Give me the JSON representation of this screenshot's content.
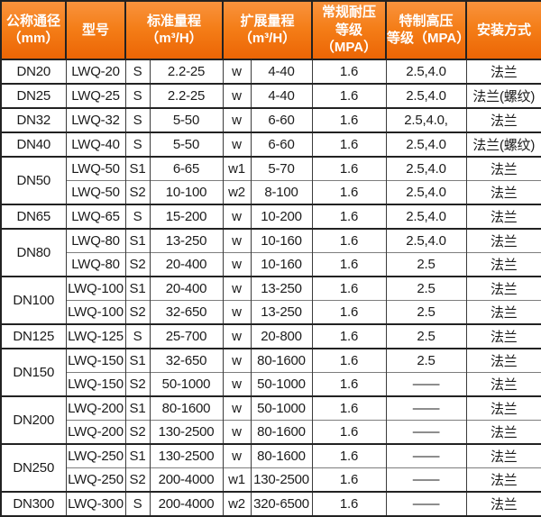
{
  "header": {
    "col_dn": "公称通径\n（mm）",
    "col_model": "型号",
    "col_standard_range": "标准量程\n（m³/H）",
    "col_extended_range": "扩展量程\n（m³/H）",
    "col_pressure_standard": "常规耐压\n等级（MPA）",
    "col_pressure_high": "特制高压\n等级（MPA）",
    "col_install": "安装方式"
  },
  "colors": {
    "header_gradient_top": "#f9933d",
    "header_gradient_bottom": "#ec6505",
    "header_text": "#ffffff",
    "border_dark": "#222222",
    "body_text": "#1b1b1b"
  },
  "table": {
    "rows": [
      {
        "dn": "DN20",
        "dn_rowspan": 1,
        "group_start": true,
        "model": "LWQ-20",
        "s": "S",
        "std": "2.2-25",
        "w": "w",
        "ext": "4-40",
        "p_std": "1.6",
        "p_high": "2.5,4.0",
        "install": "法兰"
      },
      {
        "dn": "DN25",
        "dn_rowspan": 1,
        "group_start": true,
        "model": "LWQ-25",
        "s": "S",
        "std": "2.2-25",
        "w": "w",
        "ext": "4-40",
        "p_std": "1.6",
        "p_high": "2.5,4.0",
        "install": "法兰(螺纹)"
      },
      {
        "dn": "DN32",
        "dn_rowspan": 1,
        "group_start": true,
        "model": "LWQ-32",
        "s": "S",
        "std": "5-50",
        "w": "w",
        "ext": "6-60",
        "p_std": "1.6",
        "p_high": "2.5,4.0,",
        "install": "法兰"
      },
      {
        "dn": "DN40",
        "dn_rowspan": 1,
        "group_start": true,
        "model": "LWQ-40",
        "s": "S",
        "std": "5-50",
        "w": "w",
        "ext": "6-60",
        "p_std": "1.6",
        "p_high": "2.5,4.0",
        "install": "法兰(螺纹)"
      },
      {
        "dn": "DN50",
        "dn_rowspan": 2,
        "group_start": true,
        "model": "LWQ-50",
        "s": "S1",
        "std": "6-65",
        "w": "w1",
        "ext": "5-70",
        "p_std": "1.6",
        "p_high": "2.5,4.0",
        "install": "法兰"
      },
      {
        "dn": null,
        "group_start": false,
        "model": "LWQ-50",
        "s": "S2",
        "std": "10-100",
        "w": "w2",
        "ext": "8-100",
        "p_std": "1.6",
        "p_high": "2.5,4.0",
        "install": "法兰"
      },
      {
        "dn": "DN65",
        "dn_rowspan": 1,
        "group_start": true,
        "model": "LWQ-65",
        "s": "S",
        "std": "15-200",
        "w": "w",
        "ext": "10-200",
        "p_std": "1.6",
        "p_high": "2.5,4.0",
        "install": "法兰"
      },
      {
        "dn": "DN80",
        "dn_rowspan": 2,
        "group_start": true,
        "model": "LWQ-80",
        "s": "S1",
        "std": "13-250",
        "w": "w",
        "ext": "10-160",
        "p_std": "1.6",
        "p_high": "2.5,4.0",
        "install": "法兰"
      },
      {
        "dn": null,
        "group_start": false,
        "model": "LWQ-80",
        "s": "S2",
        "std": "20-400",
        "w": "w",
        "ext": "10-160",
        "p_std": "1.6",
        "p_high": "2.5",
        "install": "法兰"
      },
      {
        "dn": "DN100",
        "dn_rowspan": 2,
        "group_start": true,
        "model": "LWQ-100",
        "s": "S1",
        "std": "20-400",
        "w": "w",
        "ext": "13-250",
        "p_std": "1.6",
        "p_high": "2.5",
        "install": "法兰"
      },
      {
        "dn": null,
        "group_start": false,
        "model": "LWQ-100",
        "s": "S2",
        "std": "32-650",
        "w": "w",
        "ext": "13-250",
        "p_std": "1.6",
        "p_high": "2.5",
        "install": "法兰"
      },
      {
        "dn": "DN125",
        "dn_rowspan": 1,
        "group_start": true,
        "model": "LWQ-125",
        "s": "S",
        "std": "25-700",
        "w": "w",
        "ext": "20-800",
        "p_std": "1.6",
        "p_high": "2.5",
        "install": "法兰"
      },
      {
        "dn": "DN150",
        "dn_rowspan": 2,
        "group_start": true,
        "model": "LWQ-150",
        "s": "S1",
        "std": "32-650",
        "w": "w",
        "ext": "80-1600",
        "p_std": "1.6",
        "p_high": "2.5",
        "install": "法兰"
      },
      {
        "dn": null,
        "group_start": false,
        "model": "LWQ-150",
        "s": "S2",
        "std": "50-1000",
        "w": "w",
        "ext": "50-1000",
        "p_std": "1.6",
        "p_high": "——",
        "install": "法兰"
      },
      {
        "dn": "DN200",
        "dn_rowspan": 2,
        "group_start": true,
        "model": "LWQ-200",
        "s": "S1",
        "std": "80-1600",
        "w": "w",
        "ext": "50-1000",
        "p_std": "1.6",
        "p_high": "——",
        "install": "法兰"
      },
      {
        "dn": null,
        "group_start": false,
        "model": "LWQ-200",
        "s": "S2",
        "std": "130-2500",
        "w": "w",
        "ext": "80-1600",
        "p_std": "1.6",
        "p_high": "——",
        "install": "法兰"
      },
      {
        "dn": "DN250",
        "dn_rowspan": 2,
        "group_start": true,
        "model": "LWQ-250",
        "s": "S1",
        "std": "130-2500",
        "w": "w",
        "ext": "80-1600",
        "p_std": "1.6",
        "p_high": "——",
        "install": "法兰"
      },
      {
        "dn": null,
        "group_start": false,
        "model": "LWQ-250",
        "s": "S2",
        "std": "200-4000",
        "w": "w1",
        "ext": "130-2500",
        "p_std": "1.6",
        "p_high": "——",
        "install": "法兰"
      },
      {
        "dn": "DN300",
        "dn_rowspan": 1,
        "group_start": true,
        "model": "LWQ-300",
        "s": "S",
        "std": "200-4000",
        "w": "w2",
        "ext": "320-6500",
        "p_std": "1.6",
        "p_high": "——",
        "install": "法兰"
      }
    ]
  }
}
